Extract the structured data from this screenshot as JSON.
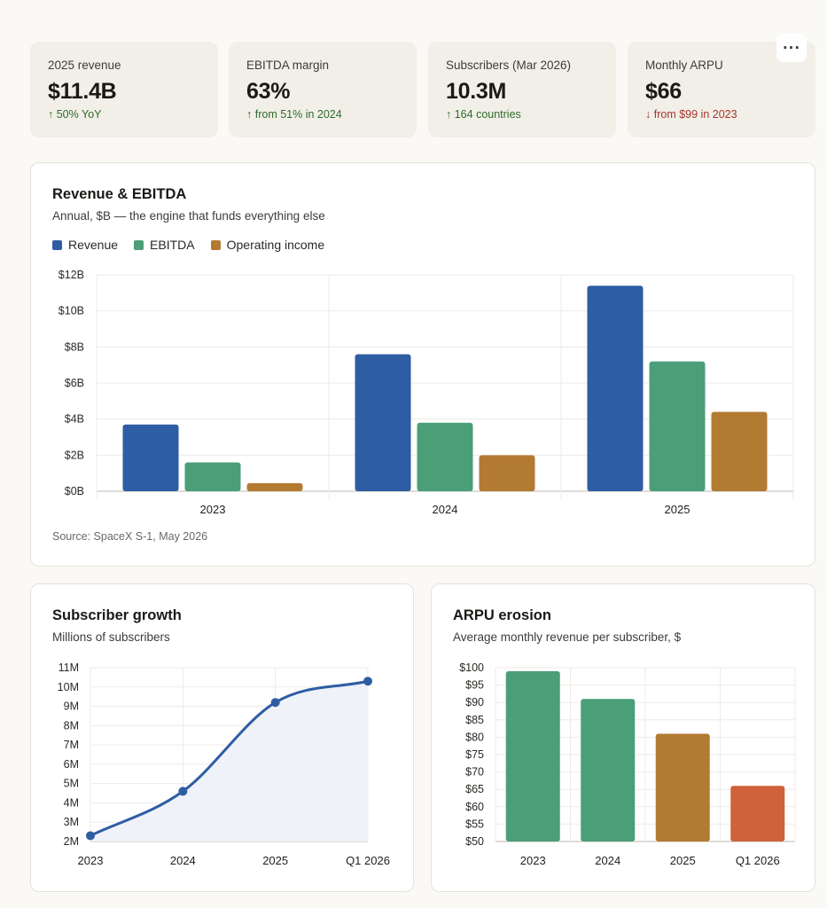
{
  "menu": {
    "more_label": "···"
  },
  "kpis": [
    {
      "label": "2025 revenue",
      "value": "$11.4B",
      "delta": "50% YoY",
      "direction": "up"
    },
    {
      "label": "EBITDA margin",
      "value": "63%",
      "delta": "from 51% in 2024",
      "direction": "up"
    },
    {
      "label": "Subscribers (Mar 2026)",
      "value": "10.3M",
      "delta": "164 countries",
      "direction": "up"
    },
    {
      "label": "Monthly ARPU",
      "value": "$66",
      "delta": "from $99 in 2023",
      "direction": "down"
    }
  ],
  "arrows": {
    "up": "↑",
    "down": "↓"
  },
  "revenue_card": {
    "title": "Revenue & EBITDA",
    "subtitle": "Annual, $B — the engine that funds everything else",
    "source": "Source: SpaceX S-1, May 2026"
  },
  "subscriber_card": {
    "title": "Subscriber growth",
    "subtitle": "Millions of subscribers"
  },
  "arpu_card": {
    "title": "ARPU erosion",
    "subtitle": "Average monthly revenue per subscriber, $"
  },
  "chart_data": [
    {
      "type": "bar",
      "title": "Revenue & EBITDA",
      "subtitle": "Annual, $B — the engine that funds everything else",
      "categories": [
        "2023",
        "2024",
        "2025"
      ],
      "series": [
        {
          "name": "Revenue",
          "color": "#2e5da3",
          "values": [
            3.7,
            7.6,
            11.4
          ]
        },
        {
          "name": "EBITDA",
          "color": "#4a9e78",
          "values": [
            1.6,
            3.8,
            7.2
          ]
        },
        {
          "name": "Operating income",
          "color": "#b37a32",
          "values": [
            0.45,
            2.0,
            4.4
          ]
        }
      ],
      "ylim": [
        0,
        12
      ],
      "yticks": [
        0,
        2,
        4,
        6,
        8,
        10,
        12
      ],
      "ytick_labels": [
        "$0B",
        "$2B",
        "$4B",
        "$6B",
        "$8B",
        "$10B",
        "$12B"
      ],
      "legend": "top-left",
      "grid": true
    },
    {
      "type": "area",
      "title": "Subscriber growth",
      "subtitle": "Millions of subscribers",
      "categories": [
        "2023",
        "2024",
        "2025",
        "Q1 2026"
      ],
      "values": [
        2.3,
        4.6,
        9.2,
        10.3
      ],
      "color": "#2e5da3",
      "fill": "#eef1fa",
      "ylim": [
        2,
        11
      ],
      "yticks": [
        2,
        3,
        4,
        5,
        6,
        7,
        8,
        9,
        10,
        11
      ],
      "ytick_labels": [
        "2M",
        "3M",
        "4M",
        "5M",
        "6M",
        "7M",
        "8M",
        "9M",
        "10M",
        "11M"
      ],
      "grid": true
    },
    {
      "type": "bar",
      "title": "ARPU erosion",
      "subtitle": "Average monthly revenue per subscriber, $",
      "categories": [
        "2023",
        "2024",
        "2025",
        "Q1 2026"
      ],
      "values": [
        99,
        91,
        81,
        66
      ],
      "colors": [
        "#4a9e78",
        "#4a9e78",
        "#b37a32",
        "#cf613b"
      ],
      "ylim": [
        50,
        100
      ],
      "yticks": [
        50,
        55,
        60,
        65,
        70,
        75,
        80,
        85,
        90,
        95,
        100
      ],
      "ytick_labels": [
        "$50",
        "$55",
        "$60",
        "$65",
        "$70",
        "$75",
        "$80",
        "$85",
        "$90",
        "$95",
        "$100"
      ],
      "grid": true
    }
  ]
}
